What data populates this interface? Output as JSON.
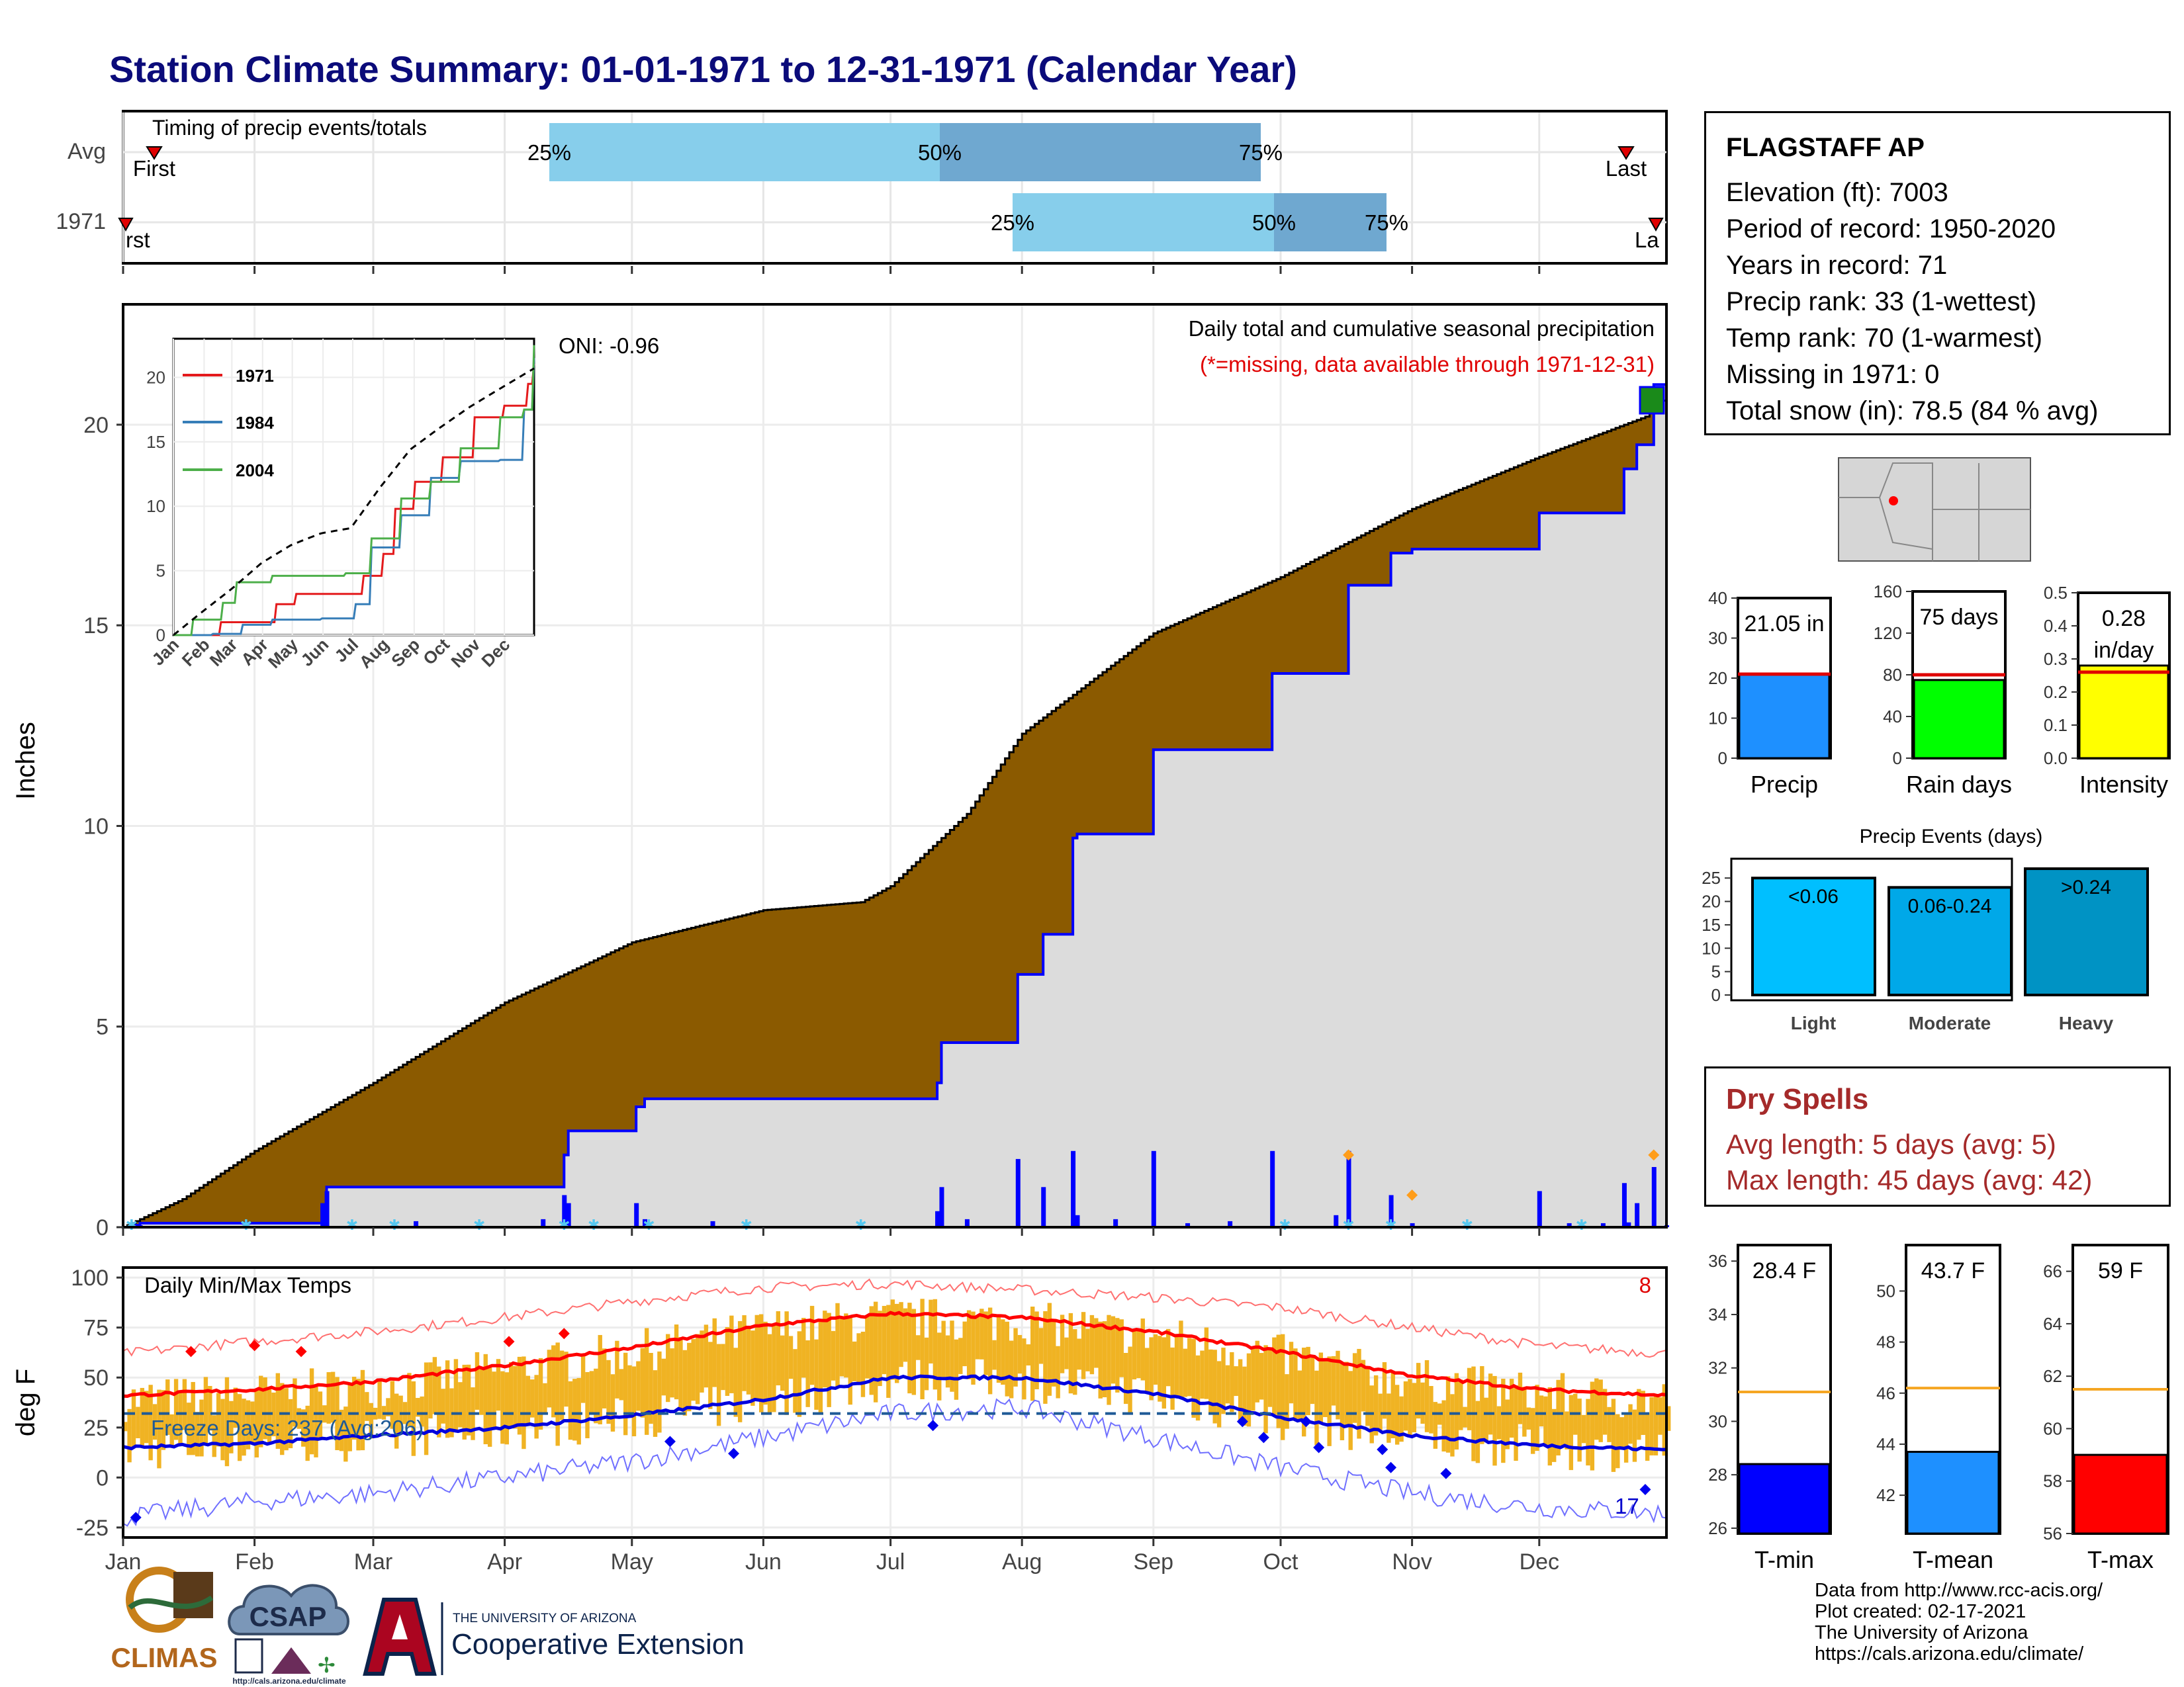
{
  "title": "Station Climate Summary: 01-01-1971 to 12-31-1971 (Calendar Year)",
  "colors": {
    "title": "#0b0b7a",
    "precip_fill": "#8b5a00",
    "avg_fill": "#dcdcdc",
    "line_1971": "#e41a1c",
    "line_1984": "#377eb8",
    "line_2004": "#4daf4a",
    "temp_bar": "#f0b323",
    "dry_spell": "#a52a2a"
  },
  "timing": {
    "title": "Timing of precip events/totals",
    "row_labels": [
      "Avg",
      "1971"
    ],
    "avg": {
      "first_label": "First",
      "last_label": "Last",
      "p25": "25%",
      "p50": "50%",
      "p75": "75%"
    },
    "y1971": {
      "first_label": "rst",
      "last_label": "La",
      "p25": "25%",
      "p50": "50%",
      "p75": "75%"
    }
  },
  "station": {
    "name": "FLAGSTAFF AP",
    "lines": [
      "Elevation (ft): 7003",
      "Period of record: 1950-2020",
      "Years in record: 71",
      "Precip rank: 33 (1-wettest)",
      "Temp rank: 70 (1-warmest)",
      "Missing in 1971: 0",
      "Total snow (in): 78.5 (84 % avg)"
    ]
  },
  "precip_panel": {
    "ylabel": "Inches",
    "oni": "ONI: -0.96",
    "caption": "Daily total and cumulative seasonal precipitation",
    "missing_note": "(*=missing, data available through 1971-12-31)",
    "yticks": [
      "0",
      "5",
      "10",
      "15",
      "20"
    ]
  },
  "months": [
    "Jan",
    "Feb",
    "Mar",
    "Apr",
    "May",
    "Jun",
    "Jul",
    "Aug",
    "Sep",
    "Oct",
    "Nov",
    "Dec"
  ],
  "inset": {
    "yticks": [
      "0",
      "5",
      "10",
      "15",
      "20"
    ],
    "legend": [
      "1971",
      "1984",
      "2004"
    ]
  },
  "stat_bars": {
    "precip": {
      "label": "Precip",
      "value_label": "21.05 in",
      "value": 21.05,
      "avg": 21.0,
      "ymax": 40,
      "yticks": [
        "0",
        "10",
        "20",
        "30",
        "40"
      ],
      "color": "#1e90ff"
    },
    "rain_days": {
      "label": "Rain days",
      "value_label": "75 days",
      "value": 75,
      "avg": 80,
      "ymax": 160,
      "yticks": [
        "0",
        "40",
        "80",
        "120",
        "160"
      ],
      "color": "#00ff00"
    },
    "intensity": {
      "label": "Intensity",
      "value_label": "0.28",
      "value_label2": "in/day",
      "value": 0.28,
      "avg": 0.26,
      "ymax": 0.5,
      "yticks": [
        "0.0",
        "0.1",
        "0.2",
        "0.3",
        "0.4",
        "0.5"
      ],
      "color": "#ffff00"
    }
  },
  "events": {
    "title": "Precip Events (days)",
    "categories": [
      "Light",
      "Moderate",
      "Heavy"
    ],
    "values": [
      25,
      23,
      27
    ],
    "value_labels": [
      "<0.06",
      "0.06-0.24",
      ">0.24"
    ],
    "yticks": [
      "0",
      "5",
      "10",
      "15",
      "20",
      "25"
    ]
  },
  "dry_spells": {
    "title": "Dry Spells",
    "avg_length": "Avg length: 5 days (avg: 5)",
    "max_length": "Max length: 45 days (avg: 42)"
  },
  "temp_panel": {
    "ylabel": "deg F",
    "title": "Daily Min/Max Temps",
    "record_high_count": "8",
    "record_low_count": "17",
    "freeze_days": "Freeze Days: 237 (Avg:206)",
    "yticks": [
      "-25",
      "0",
      "25",
      "50",
      "75",
      "100"
    ]
  },
  "temp_summary": {
    "tmin": {
      "label": "T-min",
      "value_label": "28.4 F",
      "value": 28.4,
      "avg": 31.1,
      "ymin": 25.8,
      "ymax": 36.6,
      "yticks": [
        "26",
        "28",
        "30",
        "32",
        "34",
        "36"
      ],
      "color": "#0000ff"
    },
    "tmean": {
      "label": "T-mean",
      "value_label": "43.7 F",
      "value": 43.7,
      "avg": 46.2,
      "ymin": 40.5,
      "ymax": 51.8,
      "yticks": [
        "42",
        "44",
        "46",
        "48",
        "50"
      ],
      "color": "#1e90ff"
    },
    "tmax": {
      "label": "T-max",
      "value_label": "59 F",
      "value": 59.0,
      "avg": 61.5,
      "ymin": 56.0,
      "ymax": 67.0,
      "yticks": [
        "56",
        "58",
        "60",
        "62",
        "64",
        "66"
      ],
      "color": "#ff0000"
    }
  },
  "logos": {
    "climas": "CLIMAS",
    "csap": "CSAP",
    "csap_url": "http://cals.arizona.edu/climate",
    "ua_small": "THE UNIVERSITY OF ARIZONA",
    "ua_large": "Cooperative Extension"
  },
  "credits": [
    "Data from http://www.rcc-acis.org/",
    "Plot created: 02-17-2021",
    "The University of Arizona",
    "https://cals.arizona.edu/climate/"
  ],
  "chart_data": [
    {
      "type": "area",
      "title": "Daily total and cumulative seasonal precipitation",
      "ylabel": "Inches",
      "ylim": [
        0,
        23
      ],
      "x_months": [
        "Jan",
        "Feb",
        "Mar",
        "Apr",
        "May",
        "Jun",
        "Jul",
        "Aug",
        "Sep",
        "Oct",
        "Nov",
        "Dec"
      ],
      "series": [
        {
          "name": "average cumulative",
          "x_day": [
            1,
            15,
            32,
            60,
            91,
            121,
            152,
            175,
            182,
            200,
            213,
            244,
            274,
            305,
            335,
            360,
            365
          ],
          "values": [
            0.0,
            0.7,
            1.9,
            3.6,
            5.6,
            7.1,
            7.9,
            8.1,
            8.5,
            10.3,
            12.3,
            14.8,
            16.2,
            17.9,
            19.2,
            20.2,
            20.7
          ]
        },
        {
          "name": "1971 cumulative",
          "x_day": [
            1,
            4,
            5,
            48,
            49,
            105,
            106,
            122,
            124,
            193,
            194,
            212,
            218,
            225,
            226,
            244,
            272,
            290,
            300,
            305,
            335,
            355,
            358,
            362,
            365
          ],
          "values": [
            0.0,
            0.05,
            0.1,
            0.1,
            1.0,
            1.8,
            2.4,
            3.0,
            3.2,
            3.6,
            4.6,
            6.3,
            7.3,
            9.7,
            9.8,
            11.9,
            13.8,
            16.0,
            16.8,
            16.9,
            17.8,
            18.9,
            19.5,
            21.0,
            21.05
          ]
        }
      ]
    },
    {
      "type": "line",
      "legend": [
        "1971",
        "1984",
        "2004"
      ],
      "ylim": [
        0,
        23
      ],
      "x_months": [
        "Jan",
        "Feb",
        "Mar",
        "Apr",
        "May",
        "Jun",
        "Jul",
        "Aug",
        "Sep",
        "Oct",
        "Nov",
        "Dec"
      ],
      "series": [
        {
          "name": "1971",
          "x_day": [
            1,
            48,
            105,
            124,
            193,
            212,
            225,
            244,
            272,
            305,
            335,
            358,
            365
          ],
          "values": [
            0,
            1.0,
            2.4,
            3.2,
            4.6,
            6.3,
            9.8,
            11.9,
            13.8,
            16.9,
            17.8,
            19.5,
            21.05
          ]
        },
        {
          "name": "1984",
          "x_day": [
            1,
            40,
            70,
            100,
            150,
            185,
            200,
            230,
            260,
            290,
            330,
            355,
            365
          ],
          "values": [
            0,
            0.1,
            0.8,
            1.2,
            1.3,
            2.4,
            6.8,
            9.3,
            12.2,
            13.5,
            13.6,
            17.5,
            21.5
          ]
        },
        {
          "name": "2004",
          "x_day": [
            1,
            20,
            50,
            65,
            100,
            150,
            175,
            200,
            230,
            260,
            290,
            330,
            355,
            365
          ],
          "values": [
            0,
            1.2,
            2.5,
            4.1,
            4.6,
            4.6,
            4.8,
            7.5,
            10.6,
            11.9,
            14.5,
            16.9,
            17.5,
            22.5
          ]
        },
        {
          "name": "average",
          "x_day": [
            1,
            30,
            60,
            90,
            120,
            150,
            180,
            210,
            240,
            270,
            300,
            330,
            365
          ],
          "values": [
            0,
            1.8,
            3.6,
            5.6,
            7.0,
            7.9,
            8.3,
            11.5,
            14.4,
            16.1,
            17.7,
            19.1,
            20.7
          ]
        }
      ]
    },
    {
      "type": "bar",
      "title": "Precip Events (days)",
      "categories": [
        "Light",
        "Moderate",
        "Heavy"
      ],
      "values": [
        25,
        23,
        27
      ],
      "ylim": [
        0,
        28
      ]
    },
    {
      "type": "bar",
      "title": "Daily Min/Max Temps",
      "ylabel": "deg F",
      "ylim": [
        -30,
        105
      ],
      "x_months": [
        "Jan",
        "Feb",
        "Mar",
        "Apr",
        "May",
        "Jun",
        "Jul",
        "Aug",
        "Sep",
        "Oct",
        "Nov",
        "Dec"
      ],
      "series": [
        {
          "name": "normal max",
          "x_day": [
            1,
            32,
            60,
            91,
            121,
            152,
            182,
            213,
            244,
            274,
            305,
            335,
            365
          ],
          "values": [
            41,
            44,
            48,
            56,
            65,
            76,
            82,
            80,
            73,
            63,
            51,
            44,
            41
          ]
        },
        {
          "name": "normal min",
          "x_day": [
            1,
            32,
            60,
            91,
            121,
            152,
            182,
            213,
            244,
            274,
            305,
            335,
            365
          ],
          "values": [
            15,
            17,
            21,
            25,
            31,
            39,
            50,
            50,
            42,
            30,
            21,
            16,
            14
          ]
        },
        {
          "name": "record max",
          "x_day": [
            1,
            32,
            60,
            91,
            121,
            152,
            182,
            213,
            244,
            274,
            305,
            335,
            365
          ],
          "values": [
            62,
            68,
            73,
            80,
            88,
            95,
            97,
            94,
            90,
            85,
            75,
            66,
            62
          ]
        },
        {
          "name": "record min",
          "x_day": [
            1,
            32,
            60,
            91,
            121,
            152,
            182,
            213,
            244,
            274,
            305,
            335,
            365
          ],
          "values": [
            -20,
            -12,
            -8,
            0,
            8,
            20,
            32,
            35,
            20,
            5,
            -8,
            -15,
            -18
          ]
        },
        {
          "name": "freeze threshold",
          "x_day": [
            1,
            365
          ],
          "values": [
            32,
            32
          ]
        }
      ]
    }
  ]
}
